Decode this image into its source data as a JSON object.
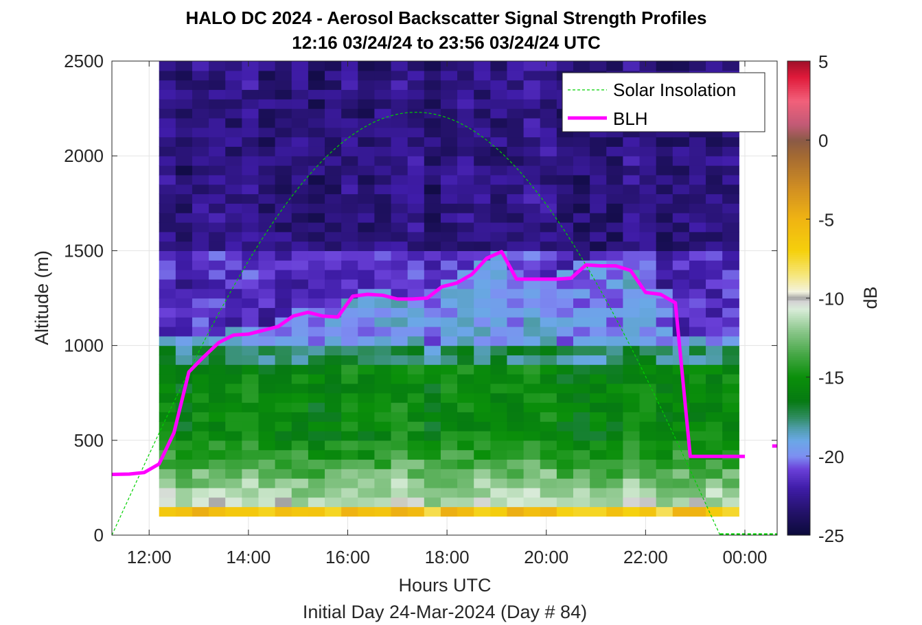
{
  "chart_data": {
    "type": "heatmap",
    "title": "HALO DC 2024 - Aerosol Backscatter Signal Strength Profiles",
    "subtitle": "12:16 03/24/24 to 23:56 03/24/24  UTC",
    "xlabel": "Hours UTC",
    "xlabel2": "Initial Day 24-Mar-2024 (Day # 84)",
    "ylabel": "Altitude (m)",
    "xlim": [
      11.25,
      24.65
    ],
    "ylim": [
      0,
      2500
    ],
    "x_tick_values": [
      12,
      14,
      16,
      18,
      20,
      22,
      24
    ],
    "x_tick_labels": [
      "12:00",
      "14:00",
      "16:00",
      "18:00",
      "20:00",
      "22:00",
      "00:00"
    ],
    "y_ticks": [
      0,
      500,
      1000,
      1500,
      2000,
      2500
    ],
    "grid": true,
    "colorbar": {
      "label": "dB",
      "range": [
        -25,
        5
      ],
      "ticks": [
        5,
        0,
        -5,
        -10,
        -15,
        -20,
        -25
      ],
      "stops": [
        {
          "v": -25,
          "c": "#0b0a3a"
        },
        {
          "v": -23.5,
          "c": "#24126a"
        },
        {
          "v": -22,
          "c": "#3f1ca8"
        },
        {
          "v": -20.8,
          "c": "#6a40d8"
        },
        {
          "v": -20,
          "c": "#7d8ff2"
        },
        {
          "v": -19,
          "c": "#6aa8e6"
        },
        {
          "v": -18.2,
          "c": "#4e9ca8"
        },
        {
          "v": -17.5,
          "c": "#2e8c5e"
        },
        {
          "v": -16.5,
          "c": "#067a12"
        },
        {
          "v": -15,
          "c": "#0a8f0a"
        },
        {
          "v": -13.5,
          "c": "#48a848"
        },
        {
          "v": -12,
          "c": "#8ec88e"
        },
        {
          "v": -10.7,
          "c": "#d8ecd8"
        },
        {
          "v": -10.2,
          "c": "#d4d4d4"
        },
        {
          "v": -10,
          "c": "#a0a0a0"
        },
        {
          "v": -9.6,
          "c": "#f3f3e0"
        },
        {
          "v": -8.5,
          "c": "#f6e67a"
        },
        {
          "v": -7,
          "c": "#f5d00c"
        },
        {
          "v": -5,
          "c": "#f0b412"
        },
        {
          "v": -3,
          "c": "#d08e22"
        },
        {
          "v": -1,
          "c": "#a46a32"
        },
        {
          "v": 0,
          "c": "#8a5a46"
        },
        {
          "v": 1,
          "c": "#c25a76"
        },
        {
          "v": 2.5,
          "c": "#f2607a"
        },
        {
          "v": 4,
          "c": "#e01a3a"
        },
        {
          "v": 5,
          "c": "#a0102a"
        }
      ]
    },
    "heatmap": {
      "x_start": 12.2,
      "x_end": 23.88,
      "n_columns": 35,
      "y_bins_bottom": [
        100,
        150,
        200,
        250,
        300,
        350,
        400,
        450,
        500,
        550,
        600,
        650,
        700,
        750,
        800,
        850,
        900,
        950,
        1000,
        1050,
        1100,
        1150,
        1200,
        1250,
        1300,
        1350,
        1400,
        1450,
        1500,
        1550,
        1600,
        1650,
        1700,
        1750,
        1800,
        1850,
        1900,
        1950,
        2000,
        2050,
        2100,
        2150,
        2200,
        2250,
        2300,
        2350,
        2400,
        2450
      ],
      "profile_dB": {
        "near_surface_100_150": -6,
        "150_300": -11,
        "300_500": -13,
        "500_900": -15.5,
        "900_1000": -17.5,
        "1000_BLH": -19.5,
        "BLH_1500": -21.5,
        "above_1500": -23
      }
    },
    "series": [
      {
        "name": "BLH",
        "style": "solid",
        "color": "#ff00ff",
        "x": [
          11.25,
          11.6,
          11.9,
          12.2,
          12.5,
          12.8,
          13.1,
          13.4,
          13.7,
          14.0,
          14.3,
          14.6,
          14.9,
          15.2,
          15.5,
          15.8,
          16.1,
          16.4,
          16.7,
          17.0,
          17.3,
          17.6,
          17.9,
          18.2,
          18.5,
          18.8,
          19.1,
          19.4,
          19.7,
          20.0,
          20.2,
          20.5,
          20.8,
          21.1,
          21.4,
          21.7,
          22.0,
          22.3,
          22.6,
          22.9,
          23.2,
          23.45,
          23.7,
          24.0
        ],
        "y": [
          320,
          322,
          330,
          375,
          540,
          860,
          940,
          1015,
          1055,
          1060,
          1080,
          1100,
          1155,
          1175,
          1155,
          1150,
          1260,
          1270,
          1265,
          1245,
          1245,
          1250,
          1310,
          1330,
          1375,
          1460,
          1495,
          1350,
          1350,
          1350,
          1350,
          1355,
          1425,
          1420,
          1420,
          1395,
          1280,
          1270,
          1225,
          415,
          415,
          415,
          415,
          415
        ],
        "extra_segment": {
          "x": [
            24.55,
            24.65
          ],
          "y": [
            470,
            470
          ]
        }
      },
      {
        "name": "Solar Insolation",
        "style": "dashed",
        "color": "#00d000",
        "peak_x": 17.35,
        "peak_y": 2230,
        "zero_x_start": 11.25,
        "zero_x_end": 23.5,
        "flat_after": {
          "x": [
            23.5,
            24.65
          ],
          "y": [
            5,
            5
          ]
        }
      }
    ],
    "legend": {
      "placement": "top-right",
      "entries": [
        "Solar Insolation",
        "BLH"
      ]
    }
  }
}
